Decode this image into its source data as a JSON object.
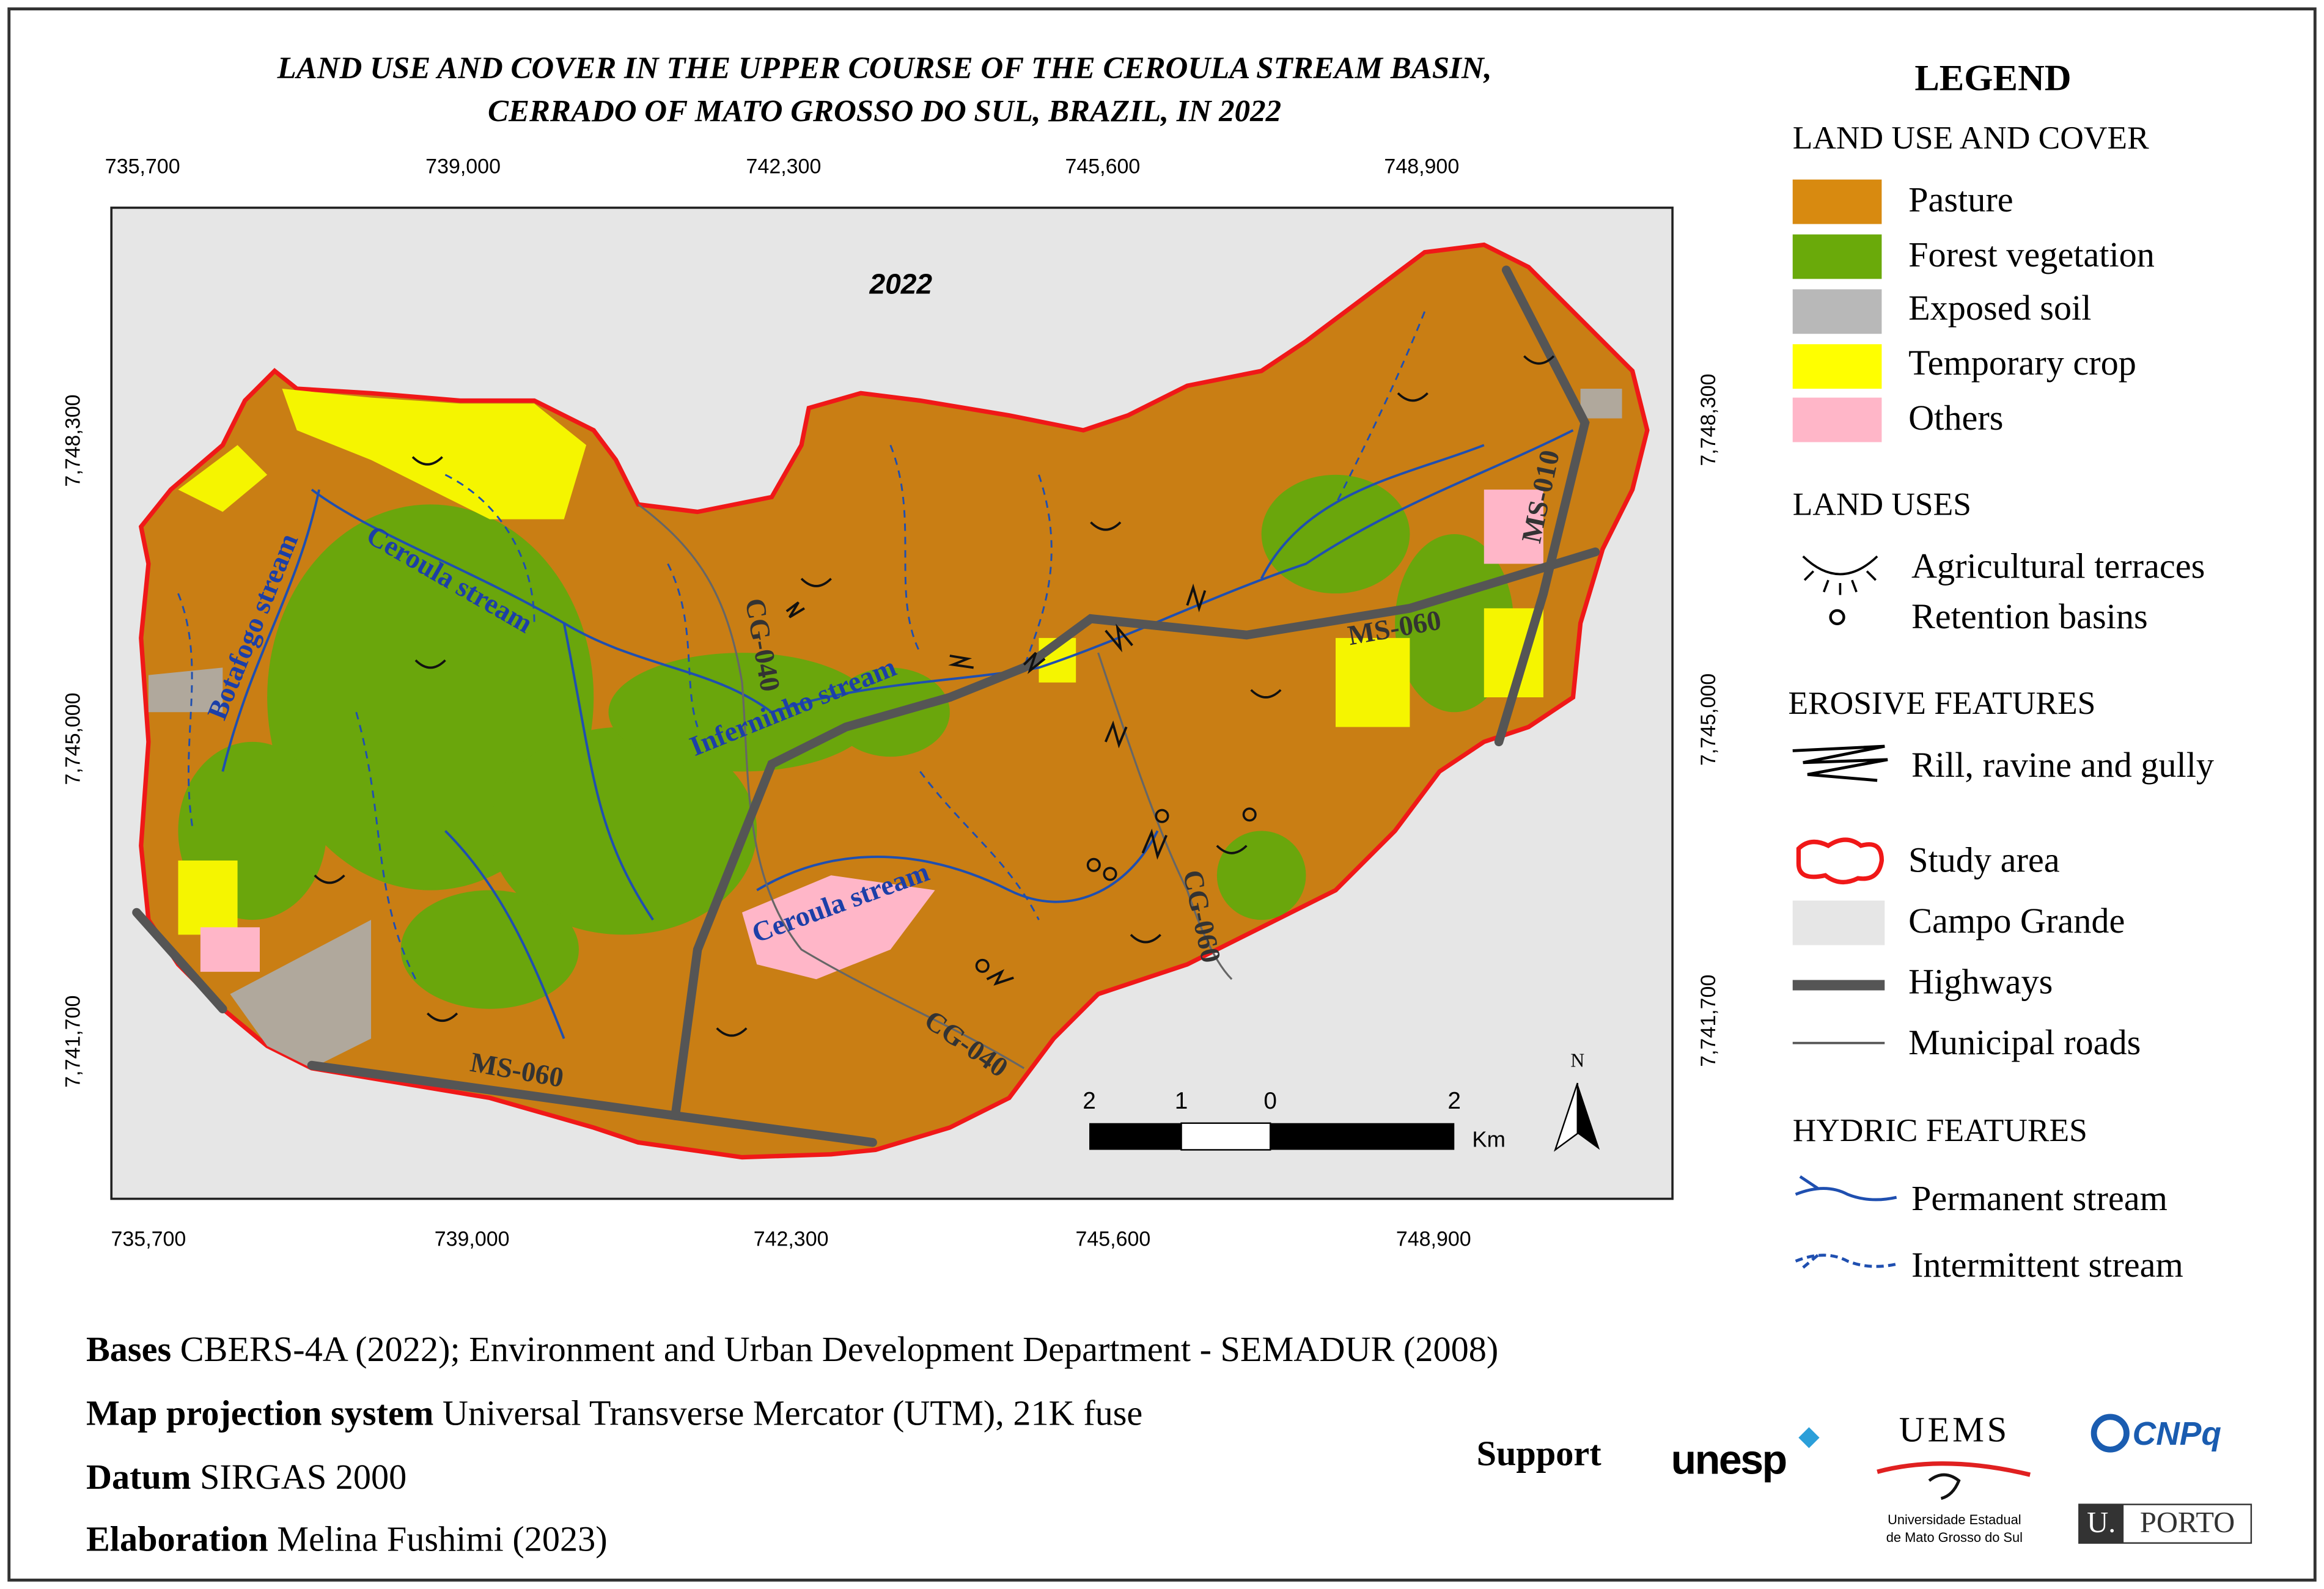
{
  "title": [
    "LAND USE AND COVER IN THE UPPER COURSE OF THE CEROULA STREAM BASIN,",
    "CERRADO OF MATO GROSSO DO SUL, BRAZIL, IN 2022"
  ],
  "map": {
    "year": "2022",
    "x_ticks": [
      "735,700",
      "739,000",
      "742,300",
      "745,600",
      "748,900"
    ],
    "y_ticks": [
      "7,748,300",
      "7,745,000",
      "7,741,700"
    ],
    "stream_labels": [
      "Botafogo stream",
      "Ceroula stream",
      "Inferninho stream",
      "Ceroula stream"
    ],
    "road_labels": [
      "CG-040",
      "CG-040",
      "CG-060",
      "MS-060",
      "MS-060",
      "MS-010"
    ],
    "scale_bar": {
      "labels": [
        "2",
        "1",
        "0",
        "2"
      ],
      "unit": "Km"
    },
    "north": "N"
  },
  "legend": {
    "title": "LEGEND",
    "land_use_cover": {
      "heading": "LAND USE AND COVER",
      "items": [
        "Pasture",
        "Forest vegetation",
        "Exposed soil",
        "Temporary crop",
        "Others"
      ]
    },
    "land_uses": {
      "heading": "LAND USES",
      "items": [
        "Agricultural terraces",
        "Retention basins"
      ]
    },
    "erosive_features": {
      "heading": "EROSIVE FEATURES",
      "items": [
        "Rill, ravine and gully"
      ]
    },
    "other_items": [
      "Study area",
      "Campo Grande",
      "Highways",
      "Municipal roads"
    ],
    "hydric_features": {
      "heading": "HYDRIC FEATURES",
      "items": [
        "Permanent stream",
        "Intermittent stream"
      ]
    }
  },
  "footer": [
    {
      "label": "Bases",
      "text": "CBERS-4A (2022); Environment and Urban Development Department - SEMADUR (2008)"
    },
    {
      "label": "Map projection system",
      "text": "Universal Transverse Mercator (UTM), 21K fuse"
    },
    {
      "label": "Datum",
      "text": "SIRGAS 2000"
    },
    {
      "label": "Elaboration",
      "text": "Melina Fushimi (2023)"
    }
  ],
  "support": {
    "label": "Support",
    "logos": [
      "unesp",
      "UEMS",
      "Universidade Estadual",
      "de Mato Grosso do Sul",
      "CNPq",
      "U.",
      "PORTO"
    ]
  }
}
